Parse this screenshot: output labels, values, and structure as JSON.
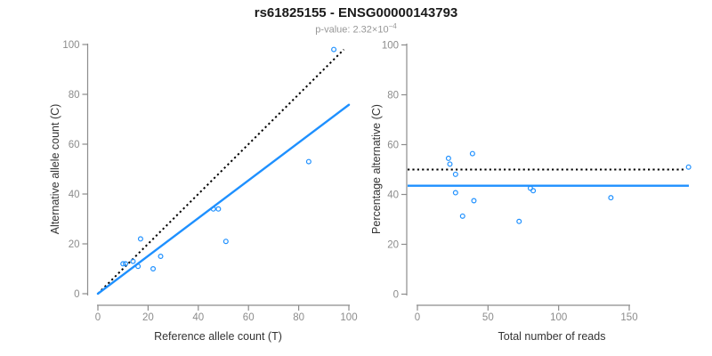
{
  "header": {
    "title": "rs61825155 - ENSG00000143793",
    "subtitle_prefix": "p-value:",
    "pvalue_mantissa": "2.32×10",
    "pvalue_exponent": "−4"
  },
  "colors": {
    "accent_blue": "#1E90FF",
    "dotted_black": "#000000",
    "axis_gray": "#8C8C8C",
    "tick_text_gray": "#8C8C8C",
    "axis_label_dark": "#333333",
    "subtitle_gray": "#979797"
  },
  "chart_data": [
    {
      "type": "scatter",
      "panel": "left",
      "xlabel": "Reference allele count (T)",
      "ylabel": "Alternative allele count (C)",
      "xlim": [
        0,
        100
      ],
      "ylim": [
        0,
        100
      ],
      "xticks": [
        0,
        20,
        40,
        60,
        80,
        100
      ],
      "yticks": [
        0,
        20,
        40,
        60,
        80,
        100
      ],
      "grid": false,
      "points": [
        [
          10,
          12
        ],
        [
          11,
          12
        ],
        [
          14,
          13
        ],
        [
          16,
          11
        ],
        [
          17,
          22
        ],
        [
          22,
          10
        ],
        [
          25,
          15
        ],
        [
          46,
          34
        ],
        [
          48,
          34
        ],
        [
          51,
          21
        ],
        [
          84,
          53
        ],
        [
          94,
          98
        ]
      ],
      "identity_line": {
        "style": "dotted",
        "from": [
          0,
          0
        ],
        "to": [
          98,
          98
        ]
      },
      "regression_line": {
        "style": "solid",
        "from": [
          0,
          0
        ],
        "to": [
          100,
          75.8
        ]
      }
    },
    {
      "type": "scatter",
      "panel": "right",
      "xlabel": "Total number of reads",
      "ylabel": "Percentage alternative (C)",
      "xlim": [
        0,
        192
      ],
      "ylim": [
        0,
        100
      ],
      "xticks": [
        0,
        50,
        100,
        150
      ],
      "yticks": [
        0,
        20,
        40,
        60,
        80,
        100
      ],
      "grid": false,
      "points": [
        [
          22,
          54.5
        ],
        [
          23,
          52.2
        ],
        [
          27,
          48.1
        ],
        [
          27,
          40.7
        ],
        [
          39,
          56.4
        ],
        [
          32,
          31.3
        ],
        [
          40,
          37.5
        ],
        [
          80,
          42.5
        ],
        [
          82,
          41.5
        ],
        [
          72,
          29.2
        ],
        [
          137,
          38.7
        ],
        [
          192,
          51.0
        ]
      ],
      "dotted_line_y": 50,
      "solid_line_y": 43.5
    }
  ]
}
